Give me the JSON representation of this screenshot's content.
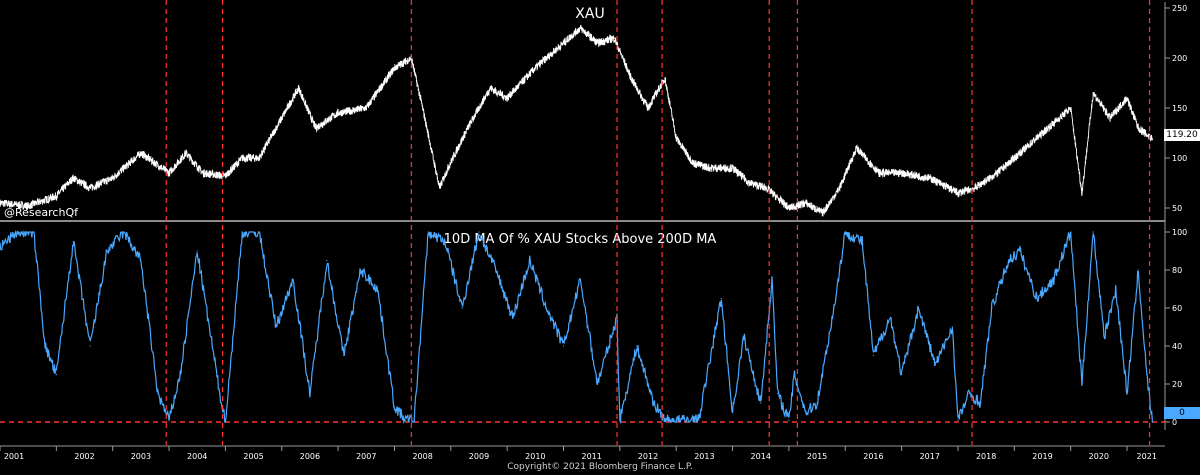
{
  "watermark": "@ResearchQf",
  "copyright": "Copyright© 2021 Bloomberg Finance L.P.",
  "colors": {
    "background": "#000000",
    "price_line": "#ffffff",
    "pct_line": "#4aa8ff",
    "marker_line": "#ff3333",
    "axis": "#9a9a9a"
  },
  "chart_data": [
    {
      "type": "line",
      "title": "XAU",
      "ylim": [
        40,
        250
      ],
      "y_ticks": [
        50,
        100,
        150,
        200,
        250
      ],
      "last_value": 119.2,
      "last_value_label": "119.20",
      "x": [
        2001.0,
        2001.5,
        2002.0,
        2002.3,
        2002.6,
        2003.0,
        2003.5,
        2004.0,
        2004.3,
        2004.6,
        2005.0,
        2005.3,
        2005.6,
        2006.0,
        2006.3,
        2006.6,
        2007.0,
        2007.5,
        2008.0,
        2008.3,
        2008.5,
        2008.8,
        2008.95,
        2009.3,
        2009.7,
        2010.0,
        2010.5,
        2010.9,
        2011.3,
        2011.6,
        2011.9,
        2012.2,
        2012.5,
        2012.8,
        2013.0,
        2013.3,
        2013.6,
        2014.0,
        2014.3,
        2014.6,
        2015.0,
        2015.3,
        2015.6,
        2015.9,
        2016.2,
        2016.6,
        2017.0,
        2017.5,
        2018.0,
        2018.3,
        2018.7,
        2019.0,
        2019.5,
        2020.0,
        2020.2,
        2020.4,
        2020.7,
        2021.0,
        2021.2,
        2021.45
      ],
      "values": [
        55,
        52,
        62,
        80,
        70,
        80,
        105,
        85,
        105,
        85,
        82,
        100,
        100,
        140,
        170,
        130,
        145,
        150,
        190,
        200,
        150,
        70,
        90,
        130,
        170,
        160,
        190,
        210,
        230,
        215,
        220,
        180,
        150,
        180,
        120,
        95,
        90,
        90,
        75,
        70,
        50,
        55,
        45,
        70,
        110,
        85,
        85,
        80,
        65,
        70,
        85,
        100,
        125,
        150,
        65,
        165,
        140,
        160,
        130,
        119.2
      ],
      "x_ticks": [
        "2001",
        "2002",
        "2003",
        "2004",
        "2005",
        "2006",
        "2007",
        "2008",
        "2009",
        "2010",
        "2011",
        "2012",
        "2013",
        "2014",
        "2015",
        "2016",
        "2017",
        "2018",
        "2019",
        "2020",
        "2021"
      ]
    },
    {
      "type": "line",
      "title": "10D MA Of % XAU Stocks Above 200D MA",
      "ylim": [
        0,
        100
      ],
      "y_ticks": [
        0,
        20,
        40,
        60,
        80,
        100
      ],
      "last_value": 0,
      "last_value_label": "0",
      "reference_line": 0,
      "x": [
        2001.0,
        2001.3,
        2001.6,
        2001.8,
        2002.0,
        2002.3,
        2002.6,
        2002.9,
        2003.2,
        2003.5,
        2003.8,
        2004.0,
        2004.2,
        2004.5,
        2004.9,
        2005.0,
        2005.3,
        2005.6,
        2005.9,
        2006.2,
        2006.5,
        2006.8,
        2007.1,
        2007.4,
        2007.7,
        2008.0,
        2008.2,
        2008.35,
        2008.6,
        2008.9,
        2009.2,
        2009.5,
        2009.8,
        2010.1,
        2010.4,
        2010.7,
        2011.0,
        2011.3,
        2011.6,
        2011.95,
        2012.0,
        2012.3,
        2012.6,
        2012.8,
        2013.0,
        2013.4,
        2013.8,
        2014.0,
        2014.2,
        2014.5,
        2014.7,
        2014.8,
        2015.0,
        2015.1,
        2015.3,
        2015.5,
        2015.8,
        2016.0,
        2016.3,
        2016.5,
        2016.8,
        2017.0,
        2017.3,
        2017.6,
        2017.9,
        2018.0,
        2018.2,
        2018.4,
        2018.6,
        2018.9,
        2019.1,
        2019.4,
        2019.7,
        2020.0,
        2020.2,
        2020.4,
        2020.6,
        2020.8,
        2021.0,
        2021.2,
        2021.35,
        2021.45
      ],
      "values": [
        92,
        100,
        100,
        40,
        25,
        95,
        40,
        90,
        100,
        85,
        15,
        1,
        25,
        90,
        15,
        0,
        100,
        100,
        50,
        75,
        15,
        85,
        35,
        80,
        70,
        8,
        1,
        1,
        100,
        95,
        60,
        100,
        80,
        55,
        85,
        60,
        40,
        75,
        20,
        55,
        1,
        40,
        10,
        1,
        1,
        1,
        65,
        5,
        45,
        10,
        75,
        15,
        1,
        25,
        5,
        10,
        60,
        100,
        95,
        35,
        55,
        25,
        60,
        30,
        50,
        1,
        15,
        10,
        60,
        85,
        90,
        65,
        75,
        100,
        20,
        100,
        45,
        70,
        15,
        80,
        25,
        0
      ],
      "x_ticks": [
        "2001",
        "2002",
        "2003",
        "2004",
        "2005",
        "2006",
        "2007",
        "2008",
        "2009",
        "2010",
        "2011",
        "2012",
        "2013",
        "2014",
        "2015",
        "2016",
        "2017",
        "2018",
        "2019",
        "2020",
        "2021"
      ]
    }
  ],
  "event_markers": [
    2003.95,
    2004.95,
    2008.3,
    2011.95,
    2012.75,
    2014.65,
    2015.15,
    2018.25,
    2021.4
  ]
}
